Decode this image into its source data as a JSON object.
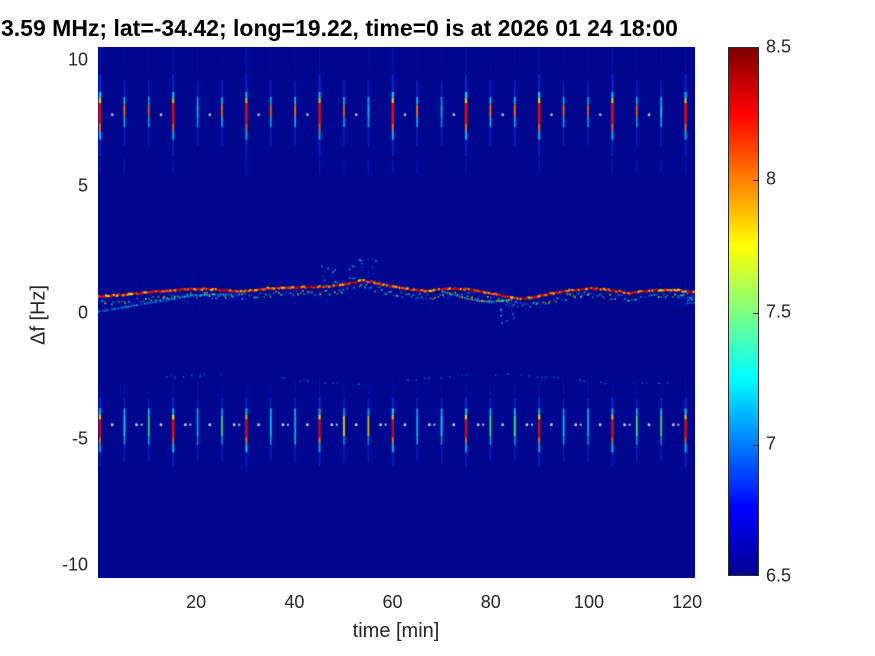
{
  "title": {
    "text": "3.59 MHz;  lat=-34.42; long=19.22, time=0 is at 2026 01 24 18:00"
  },
  "axes": {
    "xlabel": "time [min]",
    "ylabel": "Δf [Hz]",
    "xticks": [
      20,
      40,
      60,
      80,
      100,
      120
    ],
    "yticks": [
      10,
      5,
      0,
      -5,
      -10
    ]
  },
  "colorbar": {
    "min": 6.5,
    "max": 8.5,
    "ticks": [
      8.5,
      8,
      7.5,
      7,
      6.5
    ],
    "tick_marks": [
      8,
      7.5,
      7
    ],
    "colormap": "jet",
    "gradient_bottom_to_top": [
      "#00008f",
      "#0000ff",
      "#0080ff",
      "#00ffff",
      "#80ff80",
      "#ffff00",
      "#ff8000",
      "#ff0000",
      "#800000"
    ]
  },
  "chart_data": {
    "type": "heatmap",
    "title": "3.59 MHz;  lat=-34.42; long=19.22, time=0 is at 2026 01 24 18:00",
    "xlabel": "time [min]",
    "ylabel": "Δf [Hz]",
    "xlim": [
      0,
      121.6
    ],
    "ylim": [
      -10.53,
      10.53
    ],
    "xticks": [
      20,
      40,
      60,
      80,
      100,
      120
    ],
    "yticks": [
      10,
      5,
      0,
      -5,
      -10
    ],
    "value_range": [
      6.5,
      8.5
    ],
    "background_value": 6.5,
    "colors": {
      "background": "#01078e",
      "blue": "#0040ff",
      "deep_blue": "#0020dd",
      "cyan": "#00e0ff",
      "green": "#40ff78",
      "yellow": "#ffe000",
      "orange": "#ff7800",
      "red": "#e81000",
      "dark_red": "#990000",
      "white": "#eef2ff"
    },
    "features": {
      "pulse_trains": {
        "start_min": 0.4,
        "period_min": 4.97,
        "major_every": 3,
        "ghost_column_alpha": {
          "minor": 0.045,
          "major": 0.075
        },
        "top_tip": {
          "from": 10.53,
          "to": 9.6,
          "alpha_major": 0.28,
          "alpha_minor": 0.13
        },
        "upper": {
          "segments_minor": [
            [
              9.2,
              8.55,
              "blue",
              1.6,
              0.5
            ],
            [
              8.55,
              8.25,
              "cyan",
              1.7,
              0.8
            ],
            [
              8.25,
              7.75,
              "orange",
              1.8,
              0.85
            ],
            [
              7.75,
              7.35,
              "cyan",
              1.6,
              0.75
            ],
            [
              7.35,
              6.6,
              "blue",
              1.5,
              0.45
            ]
          ],
          "segments_major": [
            [
              9.45,
              8.75,
              "blue",
              2,
              0.6
            ],
            [
              8.75,
              8.5,
              "cyan",
              2.1,
              0.9
            ],
            [
              8.5,
              8.3,
              "yellow",
              2.2,
              0.9
            ],
            [
              8.3,
              7.5,
              "red",
              2.6,
              0.95
            ],
            [
              7.5,
              7.2,
              "orange",
              2.1,
              0.85
            ],
            [
              7.2,
              6.85,
              "cyan",
              2,
              0.8
            ],
            [
              6.85,
              6.2,
              "blue",
              1.8,
              0.5
            ]
          ],
          "faint_tail": [
            6.1,
            5.5,
            "blue",
            1.5,
            0.3
          ],
          "white_dots": {
            "f": 7.85,
            "every_other": true
          }
        },
        "lower": {
          "segments_minor": [
            [
              -3.4,
              -3.8,
              "blue",
              1.5,
              0.5
            ],
            [
              -3.8,
              -4.1,
              "cyan",
              1.7,
              0.8
            ],
            [
              -4.1,
              -4.9,
              "mid",
              1.8,
              0.85
            ],
            [
              -4.9,
              -5.25,
              "cyan",
              1.6,
              0.7
            ],
            [
              -5.25,
              -5.9,
              "blue",
              1.4,
              0.45
            ]
          ],
          "segments_major": [
            [
              -3.35,
              -3.8,
              "blue",
              2,
              0.6
            ],
            [
              -3.8,
              -4.05,
              "cyan",
              2.1,
              0.9
            ],
            [
              -4.05,
              -4.25,
              "yellow",
              2.2,
              0.9
            ],
            [
              -4.25,
              -4.95,
              "red",
              2.4,
              0.95
            ],
            [
              -4.95,
              -5.2,
              "orange",
              2,
              0.85
            ],
            [
              -5.2,
              -5.55,
              "cyan",
              1.9,
              0.8
            ],
            [
              -5.55,
              -6.1,
              "blue",
              1.6,
              0.5
            ]
          ],
          "faint_tip": [
            -2.75,
            -3.3,
            "blue",
            1.2,
            0.18
          ],
          "white_dots": {
            "f": -4.45,
            "every_other": false
          }
        }
      },
      "carrier": {
        "points": [
          [
            0,
            0.62
          ],
          [
            6,
            0.72
          ],
          [
            12,
            0.82
          ],
          [
            19,
            0.95
          ],
          [
            24,
            0.9
          ],
          [
            29,
            0.82
          ],
          [
            34,
            0.95
          ],
          [
            40,
            1.0
          ],
          [
            46,
            1.02
          ],
          [
            50,
            1.1
          ],
          [
            54,
            1.28
          ],
          [
            58,
            1.1
          ],
          [
            62,
            0.95
          ],
          [
            67,
            0.85
          ],
          [
            72,
            0.95
          ],
          [
            76,
            0.9
          ],
          [
            80,
            0.75
          ],
          [
            84,
            0.6
          ],
          [
            87,
            0.55
          ],
          [
            91,
            0.7
          ],
          [
            96,
            0.88
          ],
          [
            100,
            0.95
          ],
          [
            104,
            0.9
          ],
          [
            108,
            0.78
          ],
          [
            112,
            0.85
          ],
          [
            116,
            0.92
          ],
          [
            121.6,
            0.8
          ]
        ],
        "line_colors": [
          "red",
          "dark_red",
          "orange",
          "red",
          "yellow"
        ],
        "left_companion": {
          "t_end": 30,
          "offset": -0.5
        },
        "dip_companion": {
          "t0": 70,
          "t1": 84,
          "offset": -0.3
        },
        "sprays": [
          {
            "t0": 44.5,
            "t1": 48.5,
            "dir": 1,
            "reach": 0.85,
            "n": 14
          },
          {
            "t0": 50.5,
            "t1": 56.5,
            "dir": 1,
            "reach": 1.1,
            "n": 26
          },
          {
            "t0": 81.5,
            "t1": 85,
            "dir": -1,
            "reach": 1.2,
            "n": 18
          },
          {
            "t0": 118,
            "t1": 121.6,
            "dir": -1,
            "reach": 0.45,
            "n": 14
          }
        ]
      },
      "faint_trace": {
        "f_center": -2.62,
        "amplitude": 0.18,
        "segments": [
          [
            13,
            27
          ],
          [
            35,
            51
          ],
          [
            53,
            57
          ],
          [
            63,
            76
          ],
          [
            80,
            95
          ],
          [
            98,
            116
          ]
        ]
      },
      "noise_dots": 650
    }
  }
}
